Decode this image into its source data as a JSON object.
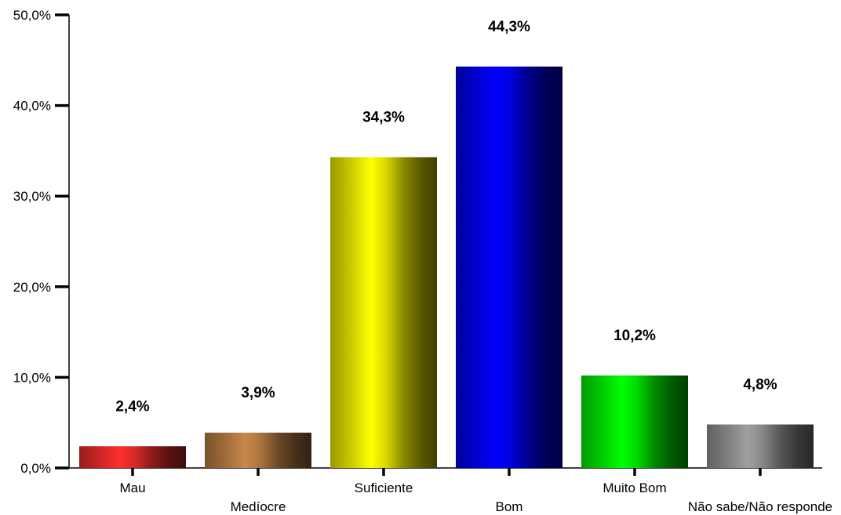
{
  "chart_data": {
    "type": "bar",
    "categories": [
      "Mau",
      "Medíocre",
      "Suficiente",
      "Bom",
      "Muito Bom",
      "Não sabe/Não responde"
    ],
    "values": [
      2.4,
      3.9,
      34.3,
      44.3,
      10.2,
      4.8
    ],
    "data_labels": [
      "2,4%",
      "3,9%",
      "34,3%",
      "44,3%",
      "10,2%",
      "4,8%"
    ],
    "y_ticks": [
      "0,0%",
      "10,0%",
      "20,0%",
      "30,0%",
      "40,0%",
      "50,0%"
    ],
    "ylim": [
      0,
      50
    ],
    "grid": false,
    "legend": false,
    "bar_colors": [
      "#ff3030",
      "#c8884a",
      "#ffff00",
      "#0000ff",
      "#00ff00",
      "#a0a0a0"
    ]
  }
}
